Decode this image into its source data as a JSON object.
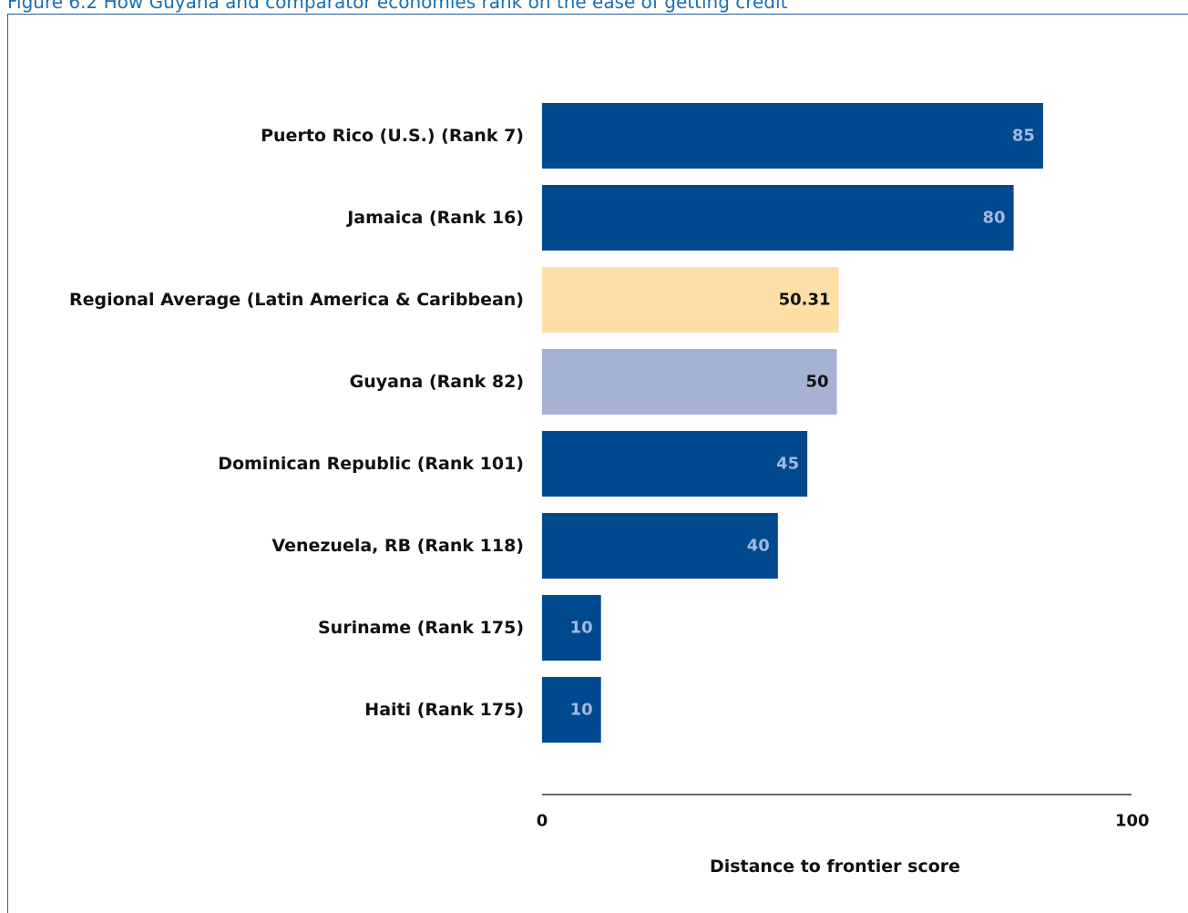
{
  "figure_title": "Figure 6.2 How Guyana and comparator economies rank on the ease of getting credit",
  "colors": {
    "title": "#1a6fb5",
    "frame": "#2a5c98",
    "economy": "#00498f",
    "regional_average": "#fddfa7",
    "guyana": "#a5b2d3",
    "label_light": "#a3b9de",
    "label_dark": "#111111"
  },
  "chart_data": {
    "type": "bar",
    "orientation": "horizontal",
    "categories": [
      "Puerto Rico (U.S.) (Rank 7)",
      "Jamaica (Rank 16)",
      "Regional Average (Latin America & Caribbean)",
      "Guyana (Rank 82)",
      "Dominican Republic (Rank 101)",
      "Venezuela, RB (Rank 118)",
      "Suriname (Rank 175)",
      "Haiti (Rank 175)"
    ],
    "values": [
      85,
      80,
      50.31,
      50,
      45,
      40,
      10,
      10
    ],
    "value_labels": [
      "85",
      "80",
      "50.31",
      "50",
      "45",
      "40",
      "10",
      "10"
    ],
    "bar_groups": [
      "economy",
      "economy",
      "regional_average",
      "guyana",
      "economy",
      "economy",
      "economy",
      "economy"
    ],
    "xlabel": "Distance to frontier score",
    "xlim": [
      0,
      100
    ],
    "xticks": [
      "0",
      "100"
    ],
    "grid": false,
    "legend": "none"
  }
}
